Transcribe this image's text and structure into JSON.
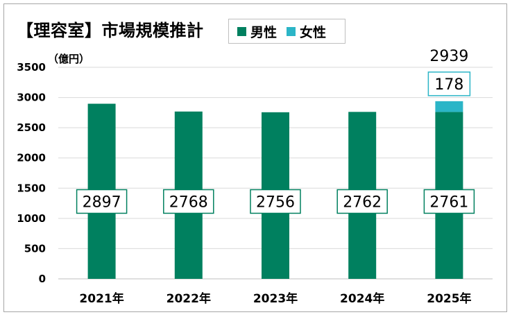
{
  "title": "【理容室】市場規模推計",
  "unit_label": "（億円）",
  "legend": [
    {
      "label": "男性",
      "color": "#00805f"
    },
    {
      "label": "女性",
      "color": "#2bb5c7"
    }
  ],
  "chart_data": {
    "type": "bar",
    "stacked": true,
    "categories": [
      "2021年",
      "2022年",
      "2023年",
      "2024年",
      "2025年"
    ],
    "series": [
      {
        "name": "男性",
        "color": "#00805f",
        "values": [
          2897,
          2768,
          2756,
          2762,
          2761
        ]
      },
      {
        "name": "女性",
        "color": "#2bb5c7",
        "values": [
          null,
          null,
          null,
          null,
          178
        ]
      }
    ],
    "totals": [
      null,
      null,
      null,
      null,
      2939
    ],
    "ylim": [
      0,
      3500
    ],
    "yticks": [
      0,
      500,
      1000,
      1500,
      2000,
      2500,
      3000,
      3500
    ],
    "grid": true,
    "legend_position": "top"
  }
}
